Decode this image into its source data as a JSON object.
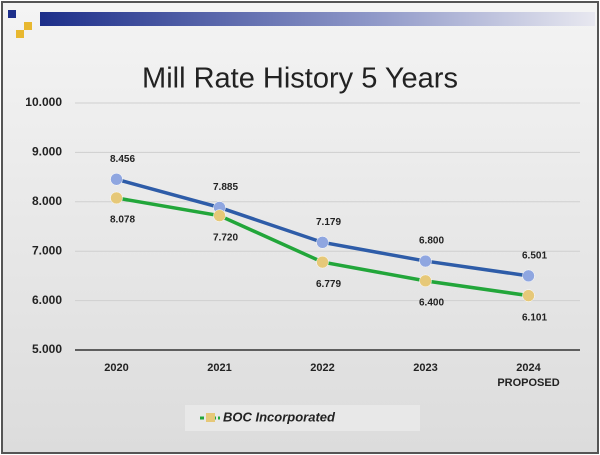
{
  "chart_data": {
    "type": "line",
    "title": "Mill Rate History 5 Years",
    "categories": [
      "2020",
      "2021",
      "2022",
      "2023",
      "2024\nPROPOSED"
    ],
    "series": [
      {
        "color": "#2e5ca8",
        "marker_color": "#8fa6e0",
        "values": [
          8.456,
          7.885,
          7.179,
          6.8,
          6.501
        ],
        "value_labels": [
          "8.456",
          "7.885",
          "7.179",
          "6.800",
          "6.501"
        ]
      },
      {
        "name": "BOC Incorporated",
        "color": "#22a63a",
        "marker_color": "#e6c878",
        "values": [
          8.078,
          7.72,
          6.779,
          6.4,
          6.101
        ],
        "value_labels": [
          "8.078",
          "7.720",
          "6.779",
          "6.400",
          "6.101"
        ]
      }
    ],
    "ylim": [
      5,
      10
    ],
    "yticks": [
      {
        "value": 5,
        "label": "5.000"
      },
      {
        "value": 6,
        "label": "6.000"
      },
      {
        "value": 7,
        "label": "7.000"
      },
      {
        "value": 8,
        "label": "8.000"
      },
      {
        "value": 9,
        "label": "9.000"
      },
      {
        "value": 10,
        "label": "10.000"
      }
    ],
    "grid": true
  }
}
